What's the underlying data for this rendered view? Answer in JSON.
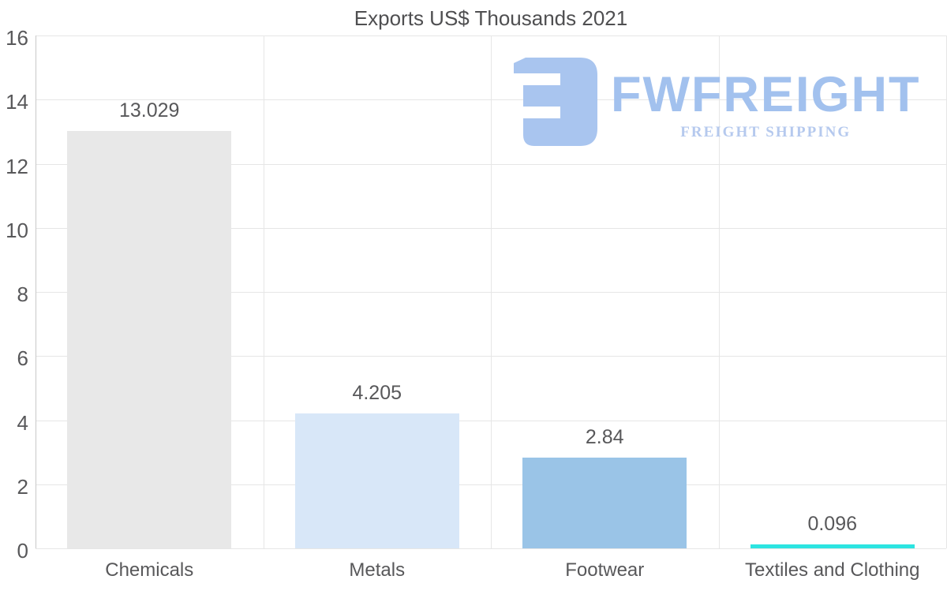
{
  "title": "Exports US$ Thousands 2021",
  "logo": {
    "brand": "FWFREIGHT",
    "tagline": "FREIGHT SHIPPING",
    "mark_color": "#a9c5ef",
    "brand_color": "#a2c1ee",
    "tagline_color": "#b5c9ee"
  },
  "chart_data": {
    "type": "bar",
    "title": "Exports US$ Thousands 2021",
    "categories": [
      "Chemicals",
      "Metals",
      "Footwear",
      "Textiles and Clothing"
    ],
    "values": [
      13.029,
      4.205,
      2.84,
      0.096
    ],
    "data_labels": [
      "13.029",
      "4.205",
      "2.84",
      "0.096"
    ],
    "bar_colors": [
      "#e8e8e8",
      "#d8e7f8",
      "#9ac4e7",
      "#2ce4e1"
    ],
    "ylim": [
      0,
      16
    ],
    "ytick_step": 2,
    "yticks": [
      0,
      2,
      4,
      6,
      8,
      10,
      12,
      14,
      16
    ],
    "grid": true,
    "legend": false,
    "xlabel": "",
    "ylabel": ""
  },
  "colors": {
    "grid_line": "#e6e6e6",
    "axis_line": "#c9c9c9",
    "label_text": "#58585a",
    "title_text": "#4f4f51"
  }
}
